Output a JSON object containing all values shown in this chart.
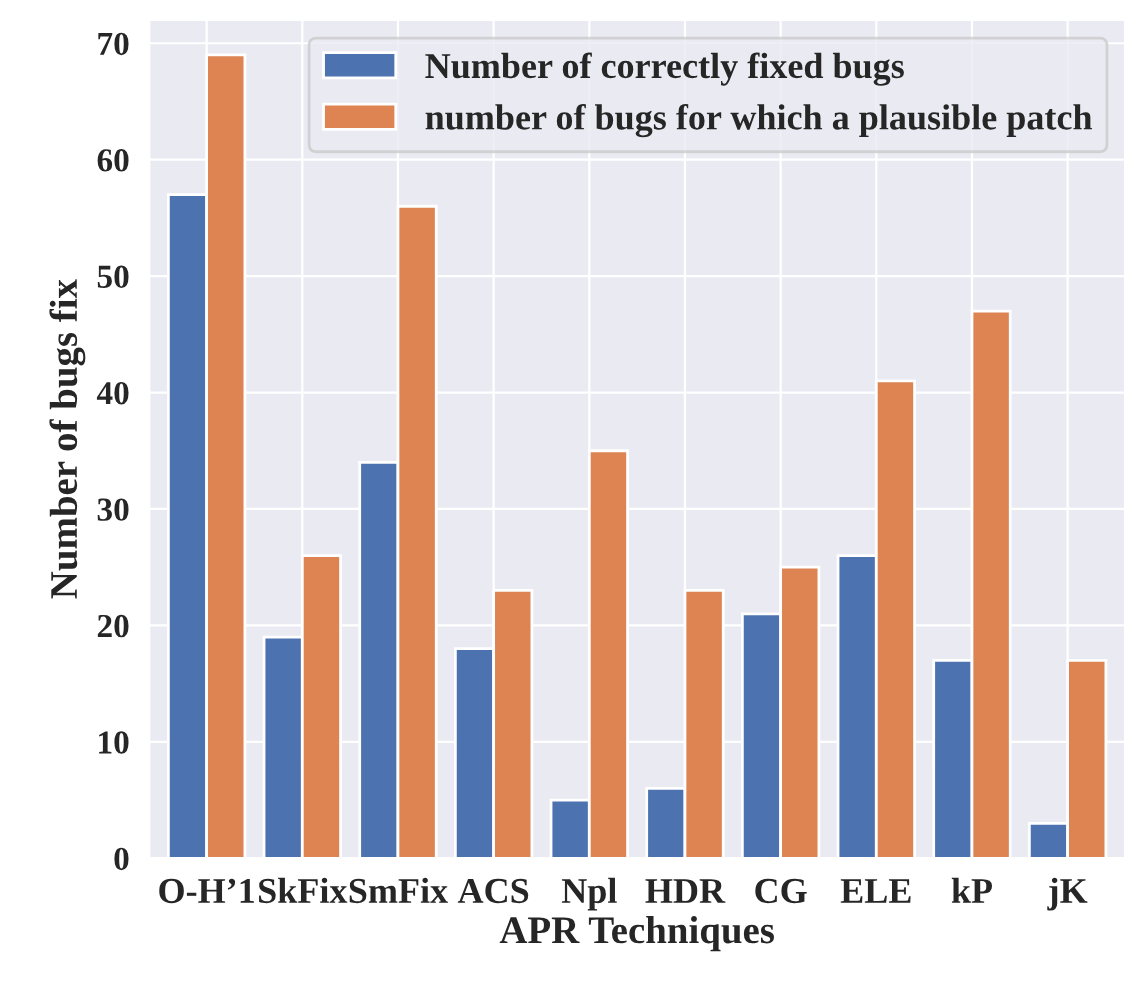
{
  "chart_data": {
    "type": "bar",
    "xlabel": "APR Techniques",
    "ylabel": "Number of bugs fix",
    "categories": [
      "O-H’1",
      "SkFix",
      "SmFix",
      "ACS",
      "Npl",
      "HDR",
      "CG",
      "ELE",
      "kP",
      "jK"
    ],
    "series": [
      {
        "name": "Number of correctly fixed bugs",
        "color": "#4c72b0",
        "values": [
          57,
          19,
          34,
          18,
          5,
          6,
          21,
          26,
          17,
          3
        ]
      },
      {
        "name": "number of bugs for which a plausible patch",
        "color": "#dd8452",
        "values": [
          69,
          26,
          56,
          23,
          35,
          23,
          25,
          41,
          47,
          17
        ]
      }
    ],
    "ylim": [
      0,
      72
    ],
    "yticks": [
      0,
      10,
      20,
      30,
      40,
      50,
      60,
      70
    ],
    "grid": true,
    "legend": "top right"
  }
}
